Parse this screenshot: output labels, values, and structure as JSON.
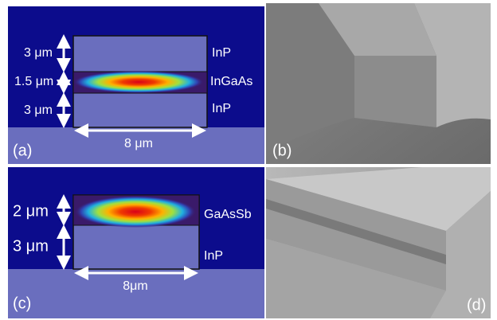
{
  "panels": [
    {
      "label": "(a)",
      "dimensions": [
        "3 μm",
        "1.5 μm",
        "3 μm"
      ],
      "layers": [
        "InP",
        "InGaAs",
        "InP"
      ],
      "width": "8 μm"
    },
    {
      "label": "(b)"
    },
    {
      "label": "(c)",
      "dimensions": [
        "2 μm",
        "3 μm"
      ],
      "layers": [
        "GaAsSb",
        "InP"
      ],
      "width": "8μm"
    },
    {
      "label": "(d)"
    }
  ]
}
